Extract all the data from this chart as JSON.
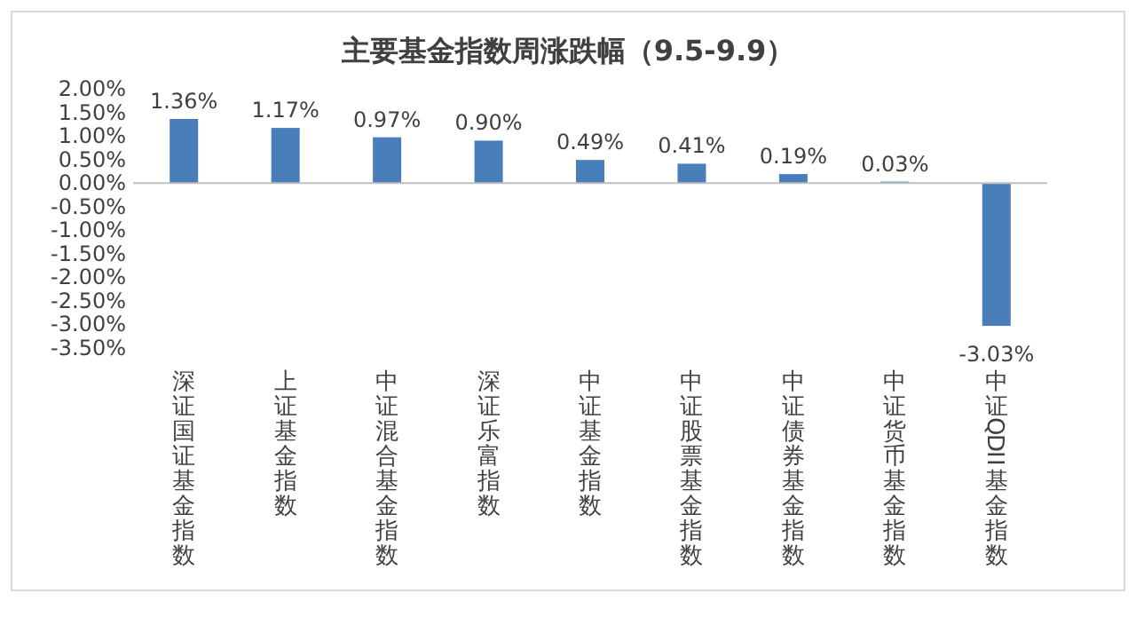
{
  "chart_data": {
    "type": "bar",
    "title": "主要基金指数周涨跌幅（9.5-9.9）",
    "categories": [
      "深证国证基金指数",
      "上证基金指数",
      "中证混合基金指数",
      "深证乐富指数",
      "中证基金指数",
      "中证股票基金指数",
      "中证债券基金指数",
      "中证货币基金指数",
      "中证QDII基金指数"
    ],
    "values": [
      1.36,
      1.17,
      0.97,
      0.9,
      0.49,
      0.41,
      0.19,
      0.03,
      -3.03
    ],
    "value_labels": [
      "1.36%",
      "1.17%",
      "0.97%",
      "0.90%",
      "0.49%",
      "0.41%",
      "0.19%",
      "0.03%",
      "-3.03%"
    ],
    "color": "#4a7ebb",
    "ylim": [
      -3.5,
      2
    ],
    "yticks": [
      {
        "value": 2,
        "label": "2.00%"
      },
      {
        "value": 1.5,
        "label": "1.50%"
      },
      {
        "value": 1,
        "label": "1.00%"
      },
      {
        "value": 0.5,
        "label": "0.50%"
      },
      {
        "value": 0,
        "label": "0.00%"
      },
      {
        "value": -0.5,
        "label": "-0.50%"
      },
      {
        "value": -1,
        "label": "-1.00%"
      },
      {
        "value": -1.5,
        "label": "-1.50%"
      },
      {
        "value": -2,
        "label": "-2.00%"
      },
      {
        "value": -2.5,
        "label": "-2.50%"
      },
      {
        "value": -3,
        "label": "-3.00%"
      },
      {
        "value": -3.5,
        "label": "-3.50%"
      }
    ],
    "relative": false
  }
}
